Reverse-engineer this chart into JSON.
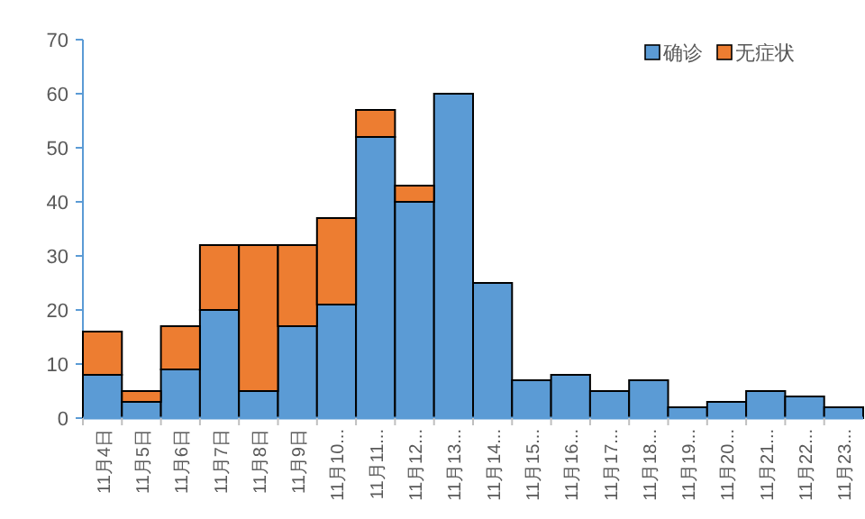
{
  "chart_data": {
    "type": "bar",
    "stacked": true,
    "categories": [
      "11月4日",
      "11月5日",
      "11月6日",
      "11月7日",
      "11月8日",
      "11月9日",
      "11月10...",
      "11月11...",
      "11月12...",
      "11月13...",
      "11月14...",
      "11月15...",
      "11月16...",
      "11月17...",
      "11月18...",
      "11月19...",
      "11月20...",
      "11月21...",
      "11月22...",
      "11月23..."
    ],
    "series": [
      {
        "name": "确诊",
        "color": "#5b9bd5",
        "values": [
          8,
          3,
          9,
          20,
          5,
          17,
          21,
          52,
          40,
          60,
          25,
          7,
          8,
          5,
          7,
          2,
          3,
          5,
          4,
          2
        ]
      },
      {
        "name": "无症状",
        "color": "#ed7d31",
        "values": [
          8,
          2,
          8,
          12,
          27,
          15,
          16,
          5,
          3,
          0,
          0,
          0,
          0,
          0,
          0,
          0,
          0,
          0,
          0,
          0
        ]
      }
    ],
    "ylim": [
      0,
      70
    ],
    "yticks": [
      0,
      10,
      20,
      30,
      40,
      50,
      60,
      70
    ],
    "legend": "top right"
  }
}
